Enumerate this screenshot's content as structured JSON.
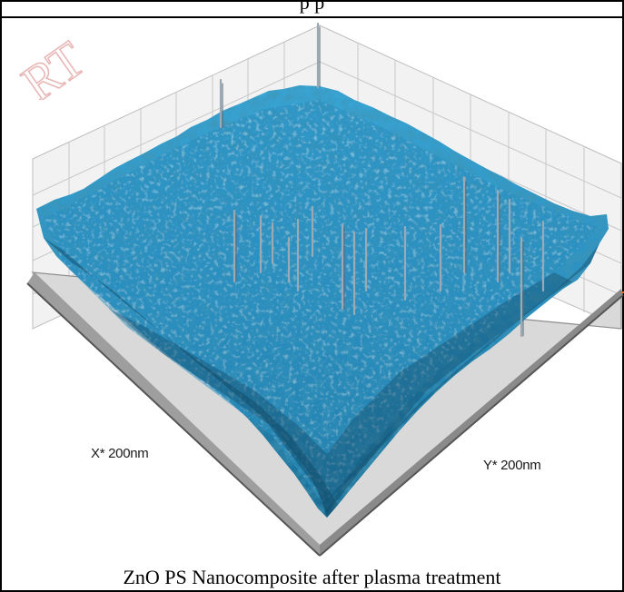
{
  "top_caption_fragment": "p          p",
  "figure": {
    "caption": "ZnO PS Nanocomposite after plasma treatment",
    "x_axis_label": "X* 200nm",
    "y_axis_label": "Y* 200nm",
    "surface_color": "#2b8fbf",
    "ridge_color": "#7fd2ec",
    "shadow_color": "#0d3f5c",
    "spike_color": "#9aa9b4",
    "grid_color": "#bdbdbd"
  },
  "watermark": {
    "text": "RT",
    "color": "#e8b8b8"
  }
}
